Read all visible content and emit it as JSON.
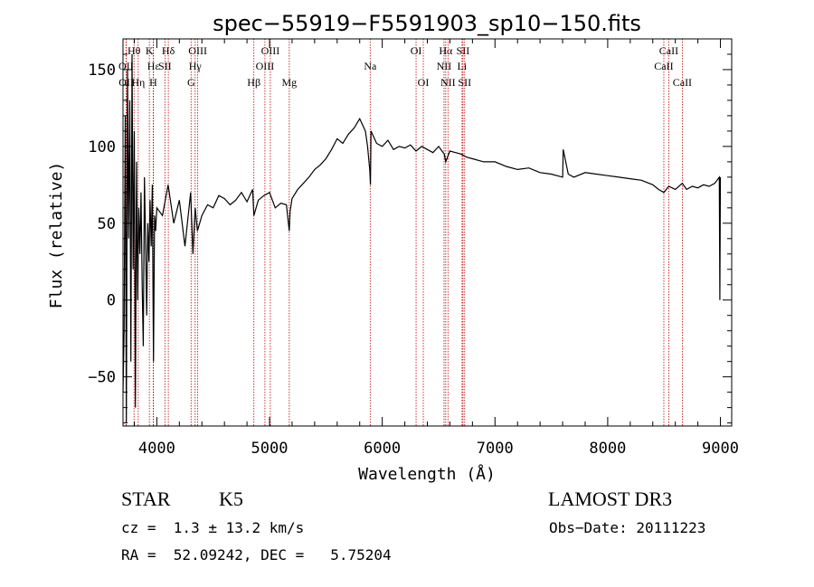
{
  "chart_data": {
    "type": "line",
    "title": "spec−55919−F5591903_sp10−150.fits",
    "xlabel": "Wavelength (Å)",
    "ylabel": "Flux (relative)",
    "xlim": [
      3700,
      9100
    ],
    "ylim": [
      -82,
      170
    ],
    "x_ticks": [
      4000,
      5000,
      6000,
      7000,
      8000,
      9000
    ],
    "y_ticks": [
      -50,
      0,
      50,
      100,
      150
    ],
    "series": [
      {
        "name": "flux",
        "x": [
          3700,
          3710,
          3720,
          3730,
          3740,
          3750,
          3760,
          3770,
          3780,
          3790,
          3800,
          3810,
          3820,
          3830,
          3840,
          3850,
          3860,
          3870,
          3880,
          3890,
          3900,
          3910,
          3920,
          3930,
          3940,
          3950,
          3960,
          3970,
          3980,
          3990,
          4000,
          4050,
          4100,
          4150,
          4200,
          4250,
          4300,
          4320,
          4340,
          4360,
          4400,
          4450,
          4500,
          4550,
          4600,
          4650,
          4700,
          4750,
          4800,
          4850,
          4861,
          4900,
          4950,
          5000,
          5050,
          5100,
          5150,
          5175,
          5183,
          5200,
          5250,
          5300,
          5350,
          5400,
          5450,
          5500,
          5550,
          5600,
          5650,
          5700,
          5750,
          5800,
          5850,
          5870,
          5889,
          5895,
          5900,
          5950,
          6000,
          6050,
          6100,
          6150,
          6200,
          6250,
          6300,
          6350,
          6400,
          6450,
          6500,
          6550,
          6563,
          6600,
          6650,
          6700,
          6750,
          6800,
          6900,
          7000,
          7100,
          7200,
          7300,
          7400,
          7500,
          7600,
          7605,
          7650,
          7700,
          7800,
          7900,
          8000,
          8100,
          8200,
          8300,
          8400,
          8450,
          8498,
          8542,
          8600,
          8662,
          8700,
          8750,
          8800,
          8850,
          8900,
          8950,
          8990,
          8995,
          9000
        ],
        "values": [
          -60,
          -20,
          120,
          -80,
          150,
          40,
          130,
          -40,
          160,
          20,
          110,
          -70,
          90,
          0,
          60,
          30,
          70,
          10,
          -30,
          80,
          40,
          -10,
          50,
          25,
          65,
          35,
          75,
          -40,
          55,
          45,
          60,
          55,
          75,
          50,
          65,
          35,
          70,
          30,
          60,
          45,
          55,
          62,
          60,
          68,
          66,
          62,
          65,
          70,
          64,
          72,
          55,
          65,
          68,
          70,
          60,
          63,
          62,
          45,
          58,
          66,
          72,
          76,
          80,
          85,
          88,
          92,
          98,
          105,
          102,
          108,
          112,
          118,
          110,
          100,
          85,
          75,
          110,
          102,
          100,
          104,
          98,
          100,
          99,
          101,
          97,
          100,
          98,
          96,
          100,
          95,
          90,
          97,
          96,
          95,
          93,
          92,
          90,
          90,
          87,
          85,
          86,
          83,
          82,
          80,
          98,
          82,
          80,
          83,
          82,
          81,
          80,
          79,
          78,
          75,
          72,
          70,
          74,
          72,
          76,
          72,
          74,
          73,
          75,
          74,
          76,
          80,
          0,
          80
        ]
      }
    ],
    "lines": [
      {
        "label": "Hθ",
        "x": 3798,
        "row": 0
      },
      {
        "label": "OII",
        "x": 3727,
        "row": 1
      },
      {
        "label": "OII",
        "x": 3729,
        "row": 2
      },
      {
        "label": "Hη",
        "x": 3835,
        "row": 2
      },
      {
        "label": "K",
        "x": 3934,
        "row": 0
      },
      {
        "label": "H",
        "x": 3968,
        "row": 2
      },
      {
        "label": "Hε",
        "x": 3970,
        "row": 1
      },
      {
        "label": "SII",
        "x": 4072,
        "row": 1
      },
      {
        "label": "Hδ",
        "x": 4102,
        "row": 0
      },
      {
        "label": "OIII",
        "x": 4363,
        "row": 0
      },
      {
        "label": "Hγ",
        "x": 4340,
        "row": 1
      },
      {
        "label": "G",
        "x": 4304,
        "row": 2
      },
      {
        "label": "Hβ",
        "x": 4861,
        "row": 2
      },
      {
        "label": "OIII",
        "x": 5007,
        "row": 0
      },
      {
        "label": "OIII",
        "x": 4959,
        "row": 1
      },
      {
        "label": "Mg",
        "x": 5175,
        "row": 2
      },
      {
        "label": "Na",
        "x": 5893,
        "row": 1
      },
      {
        "label": "OI",
        "x": 6300,
        "row": 0
      },
      {
        "label": "OI",
        "x": 6364,
        "row": 2
      },
      {
        "label": "Hα",
        "x": 6563,
        "row": 0
      },
      {
        "label": "NII",
        "x": 6548,
        "row": 1
      },
      {
        "label": "NII",
        "x": 6583,
        "row": 2
      },
      {
        "label": "SII",
        "x": 6716,
        "row": 0
      },
      {
        "label": "Li",
        "x": 6708,
        "row": 1
      },
      {
        "label": "SII",
        "x": 6731,
        "row": 2
      },
      {
        "label": "CaII",
        "x": 8542,
        "row": 0
      },
      {
        "label": "CaII",
        "x": 8498,
        "row": 1
      },
      {
        "label": "CaII",
        "x": 8662,
        "row": 2
      }
    ]
  },
  "info": {
    "class_label": "STAR",
    "subclass": "K5",
    "redshift": "cz =  1.3 ± 13.2 km/s",
    "coords": "RA =  52.09242, DEC =   5.75204",
    "survey": "LAMOST DR3",
    "obs_date": "Obs−Date: 20111223"
  }
}
